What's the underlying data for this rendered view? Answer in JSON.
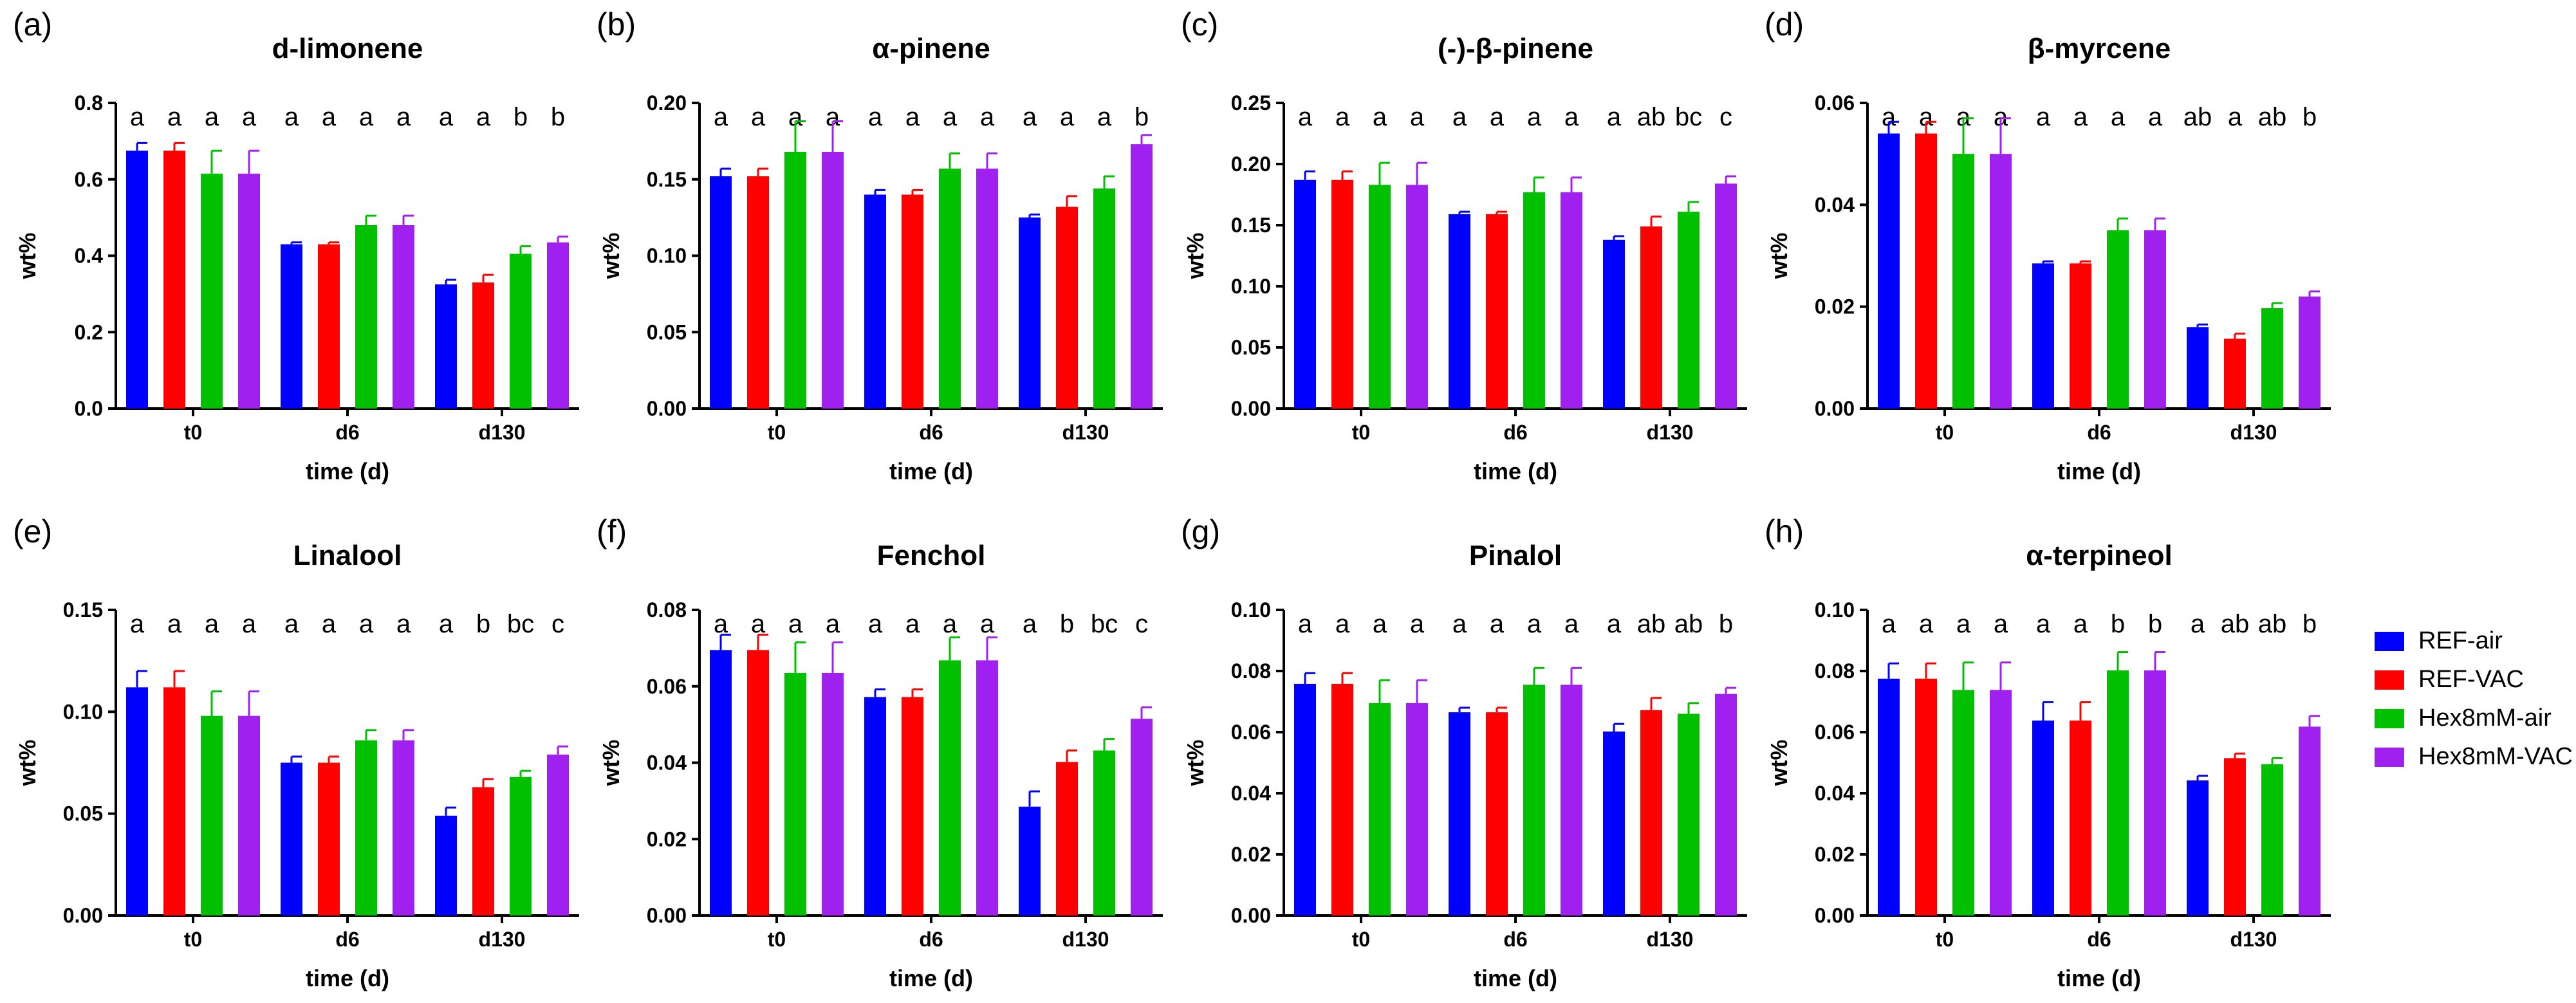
{
  "series_colors": [
    "#0000ff",
    "#ff0000",
    "#00c000",
    "#a020f0"
  ],
  "legend": [
    "REF-air",
    "REF-VAC",
    "Hex8mM-air",
    "Hex8mM-VAC"
  ],
  "chart_data": [
    {
      "type": "bar",
      "panel": "(a)",
      "title": "d-limonene",
      "xlabel": "time (d)",
      "ylabel": "wt%",
      "categories": [
        "t0",
        "d6",
        "d130"
      ],
      "ylim": [
        0,
        0.8
      ],
      "ytick_values": [
        0.0,
        0.2,
        0.4,
        0.6,
        0.8
      ],
      "ytick_labels": [
        "0.0",
        "0.2",
        "0.4",
        "0.6",
        "0.8"
      ],
      "series": [
        {
          "name": "REF-air",
          "values": [
            0.675,
            0.43,
            0.325
          ],
          "errors": [
            0.02,
            0.005,
            0.012
          ]
        },
        {
          "name": "REF-VAC",
          "values": [
            0.675,
            0.43,
            0.33
          ],
          "errors": [
            0.02,
            0.005,
            0.02
          ]
        },
        {
          "name": "Hex8mM-air",
          "values": [
            0.615,
            0.48,
            0.405
          ],
          "errors": [
            0.06,
            0.025,
            0.02
          ]
        },
        {
          "name": "Hex8mM-VAC",
          "values": [
            0.615,
            0.48,
            0.435
          ],
          "errors": [
            0.06,
            0.025,
            0.015
          ]
        }
      ],
      "significance": [
        [
          "a",
          "a",
          "a",
          "a"
        ],
        [
          "a",
          "a",
          "a",
          "a"
        ],
        [
          "a",
          "a",
          "b",
          "b"
        ]
      ]
    },
    {
      "type": "bar",
      "panel": "(b)",
      "title": "α-pinene",
      "xlabel": "time (d)",
      "ylabel": "wt%",
      "categories": [
        "t0",
        "d6",
        "d130"
      ],
      "ylim": [
        0,
        0.2
      ],
      "ytick_values": [
        0.0,
        0.05,
        0.1,
        0.15,
        0.2
      ],
      "ytick_labels": [
        "0.00",
        "0.05",
        "0.10",
        "0.15",
        "0.20"
      ],
      "series": [
        {
          "name": "REF-air",
          "values": [
            0.152,
            0.14,
            0.125
          ],
          "errors": [
            0.005,
            0.003,
            0.002
          ]
        },
        {
          "name": "REF-VAC",
          "values": [
            0.152,
            0.14,
            0.132
          ],
          "errors": [
            0.005,
            0.003,
            0.007
          ]
        },
        {
          "name": "Hex8mM-air",
          "values": [
            0.168,
            0.157,
            0.144
          ],
          "errors": [
            0.02,
            0.01,
            0.008
          ]
        },
        {
          "name": "Hex8mM-VAC",
          "values": [
            0.168,
            0.157,
            0.173
          ],
          "errors": [
            0.02,
            0.01,
            0.006
          ]
        }
      ],
      "significance": [
        [
          "a",
          "a",
          "a",
          "a"
        ],
        [
          "a",
          "a",
          "a",
          "a"
        ],
        [
          "a",
          "a",
          "a",
          "b"
        ]
      ]
    },
    {
      "type": "bar",
      "panel": "(c)",
      "title": "(-)-β-pinene",
      "xlabel": "time (d)",
      "ylabel": "wt%",
      "categories": [
        "t0",
        "d6",
        "d130"
      ],
      "ylim": [
        0,
        0.25
      ],
      "ytick_values": [
        0.0,
        0.05,
        0.1,
        0.15,
        0.2,
        0.25
      ],
      "ytick_labels": [
        "0.00",
        "0.05",
        "0.10",
        "0.15",
        "0.20",
        "0.25"
      ],
      "series": [
        {
          "name": "REF-air",
          "values": [
            0.187,
            0.159,
            0.138
          ],
          "errors": [
            0.007,
            0.002,
            0.003
          ]
        },
        {
          "name": "REF-VAC",
          "values": [
            0.187,
            0.159,
            0.149
          ],
          "errors": [
            0.007,
            0.002,
            0.008
          ]
        },
        {
          "name": "Hex8mM-air",
          "values": [
            0.183,
            0.177,
            0.161
          ],
          "errors": [
            0.018,
            0.012,
            0.008
          ]
        },
        {
          "name": "Hex8mM-VAC",
          "values": [
            0.183,
            0.177,
            0.184
          ],
          "errors": [
            0.018,
            0.012,
            0.006
          ]
        }
      ],
      "significance": [
        [
          "a",
          "a",
          "a",
          "a"
        ],
        [
          "a",
          "a",
          "a",
          "a"
        ],
        [
          "a",
          "ab",
          "bc",
          "c"
        ]
      ]
    },
    {
      "type": "bar",
      "panel": "(d)",
      "title": "β-myrcene",
      "xlabel": "time (d)",
      "ylabel": "wt%",
      "categories": [
        "t0",
        "d6",
        "d130"
      ],
      "ylim": [
        0,
        0.06
      ],
      "ytick_values": [
        0.0,
        0.02,
        0.04,
        0.06
      ],
      "ytick_labels": [
        "0.00",
        "0.02",
        "0.04",
        "0.06"
      ],
      "series": [
        {
          "name": "REF-air",
          "values": [
            0.054,
            0.0285,
            0.016
          ],
          "errors": [
            0.0023,
            0.0004,
            0.0005
          ]
        },
        {
          "name": "REF-VAC",
          "values": [
            0.054,
            0.0285,
            0.0137
          ],
          "errors": [
            0.0023,
            0.0004,
            0.001
          ]
        },
        {
          "name": "Hex8mM-air",
          "values": [
            0.05,
            0.035,
            0.0197
          ],
          "errors": [
            0.007,
            0.0023,
            0.001
          ]
        },
        {
          "name": "Hex8mM-VAC",
          "values": [
            0.05,
            0.035,
            0.022
          ],
          "errors": [
            0.007,
            0.0023,
            0.001
          ]
        }
      ],
      "significance": [
        [
          "a",
          "a",
          "a",
          "a"
        ],
        [
          "a",
          "a",
          "a",
          "a"
        ],
        [
          "ab",
          "a",
          "ab",
          "b"
        ]
      ]
    },
    {
      "type": "bar",
      "panel": "(e)",
      "title": "Linalool",
      "xlabel": "time (d)",
      "ylabel": "wt%",
      "categories": [
        "t0",
        "d6",
        "d130"
      ],
      "ylim": [
        0,
        0.15
      ],
      "ytick_values": [
        0.0,
        0.05,
        0.1,
        0.15
      ],
      "ytick_labels": [
        "0.00",
        "0.05",
        "0.10",
        "0.15"
      ],
      "series": [
        {
          "name": "REF-air",
          "values": [
            0.112,
            0.075,
            0.049
          ],
          "errors": [
            0.008,
            0.003,
            0.004
          ]
        },
        {
          "name": "REF-VAC",
          "values": [
            0.112,
            0.075,
            0.063
          ],
          "errors": [
            0.008,
            0.003,
            0.004
          ]
        },
        {
          "name": "Hex8mM-air",
          "values": [
            0.098,
            0.086,
            0.068
          ],
          "errors": [
            0.012,
            0.005,
            0.003
          ]
        },
        {
          "name": "Hex8mM-VAC",
          "values": [
            0.098,
            0.086,
            0.079
          ],
          "errors": [
            0.012,
            0.005,
            0.004
          ]
        }
      ],
      "significance": [
        [
          "a",
          "a",
          "a",
          "a"
        ],
        [
          "a",
          "a",
          "a",
          "a"
        ],
        [
          "a",
          "b",
          "bc",
          "c"
        ]
      ]
    },
    {
      "type": "bar",
      "panel": "(f)",
      "title": "Fenchol",
      "xlabel": "time (d)",
      "ylabel": "wt%",
      "categories": [
        "t0",
        "d6",
        "d130"
      ],
      "ylim": [
        0,
        0.08
      ],
      "ytick_values": [
        0.0,
        0.02,
        0.04,
        0.06,
        0.08
      ],
      "ytick_labels": [
        "0.00",
        "0.02",
        "0.04",
        "0.06",
        "0.08"
      ],
      "series": [
        {
          "name": "REF-air",
          "values": [
            0.0695,
            0.0572,
            0.0285
          ],
          "errors": [
            0.004,
            0.002,
            0.004
          ]
        },
        {
          "name": "REF-VAC",
          "values": [
            0.0695,
            0.0572,
            0.0402
          ],
          "errors": [
            0.004,
            0.002,
            0.003
          ]
        },
        {
          "name": "Hex8mM-air",
          "values": [
            0.0635,
            0.0668,
            0.0432
          ],
          "errors": [
            0.008,
            0.006,
            0.003
          ]
        },
        {
          "name": "Hex8mM-VAC",
          "values": [
            0.0635,
            0.0668,
            0.0515
          ],
          "errors": [
            0.008,
            0.006,
            0.003
          ]
        }
      ],
      "significance": [
        [
          "a",
          "a",
          "a",
          "a"
        ],
        [
          "a",
          "a",
          "a",
          "a"
        ],
        [
          "a",
          "b",
          "bc",
          "c"
        ]
      ]
    },
    {
      "type": "bar",
      "panel": "(g)",
      "title": "Pinalol",
      "xlabel": "time (d)",
      "ylabel": "wt%",
      "categories": [
        "t0",
        "d6",
        "d130"
      ],
      "ylim": [
        0,
        0.1
      ],
      "ytick_values": [
        0.0,
        0.02,
        0.04,
        0.06,
        0.08,
        0.1
      ],
      "ytick_labels": [
        "0.00",
        "0.02",
        "0.04",
        "0.06",
        "0.08",
        "0.10"
      ],
      "series": [
        {
          "name": "REF-air",
          "values": [
            0.0758,
            0.0665,
            0.0602
          ],
          "errors": [
            0.0035,
            0.0015,
            0.0025
          ]
        },
        {
          "name": "REF-VAC",
          "values": [
            0.0758,
            0.0665,
            0.0672
          ],
          "errors": [
            0.0035,
            0.0015,
            0.004
          ]
        },
        {
          "name": "Hex8mM-air",
          "values": [
            0.0695,
            0.0755,
            0.066
          ],
          "errors": [
            0.0075,
            0.0055,
            0.0035
          ]
        },
        {
          "name": "Hex8mM-VAC",
          "values": [
            0.0695,
            0.0755,
            0.0725
          ],
          "errors": [
            0.0075,
            0.0055,
            0.002
          ]
        }
      ],
      "significance": [
        [
          "a",
          "a",
          "a",
          "a"
        ],
        [
          "a",
          "a",
          "a",
          "a"
        ],
        [
          "a",
          "ab",
          "ab",
          "b"
        ]
      ]
    },
    {
      "type": "bar",
      "panel": "(h)",
      "title": "α-terpineol",
      "xlabel": "time (d)",
      "ylabel": "wt%",
      "categories": [
        "t0",
        "d6",
        "d130"
      ],
      "ylim": [
        0,
        0.1
      ],
      "ytick_values": [
        0.0,
        0.02,
        0.04,
        0.06,
        0.08,
        0.1
      ],
      "ytick_labels": [
        "0.00",
        "0.02",
        "0.04",
        "0.06",
        "0.08",
        "0.10"
      ],
      "series": [
        {
          "name": "REF-air",
          "values": [
            0.0775,
            0.0638,
            0.0442
          ],
          "errors": [
            0.005,
            0.006,
            0.0015
          ]
        },
        {
          "name": "REF-VAC",
          "values": [
            0.0775,
            0.0638,
            0.0515
          ],
          "errors": [
            0.005,
            0.006,
            0.0015
          ]
        },
        {
          "name": "Hex8mM-air",
          "values": [
            0.0738,
            0.0802,
            0.0495
          ],
          "errors": [
            0.009,
            0.006,
            0.002
          ]
        },
        {
          "name": "Hex8mM-VAC",
          "values": [
            0.0738,
            0.0802,
            0.0618
          ],
          "errors": [
            0.009,
            0.006,
            0.0035
          ]
        }
      ],
      "significance": [
        [
          "a",
          "a",
          "a",
          "a"
        ],
        [
          "a",
          "a",
          "b",
          "b"
        ],
        [
          "a",
          "ab",
          "ab",
          "b"
        ]
      ]
    }
  ]
}
